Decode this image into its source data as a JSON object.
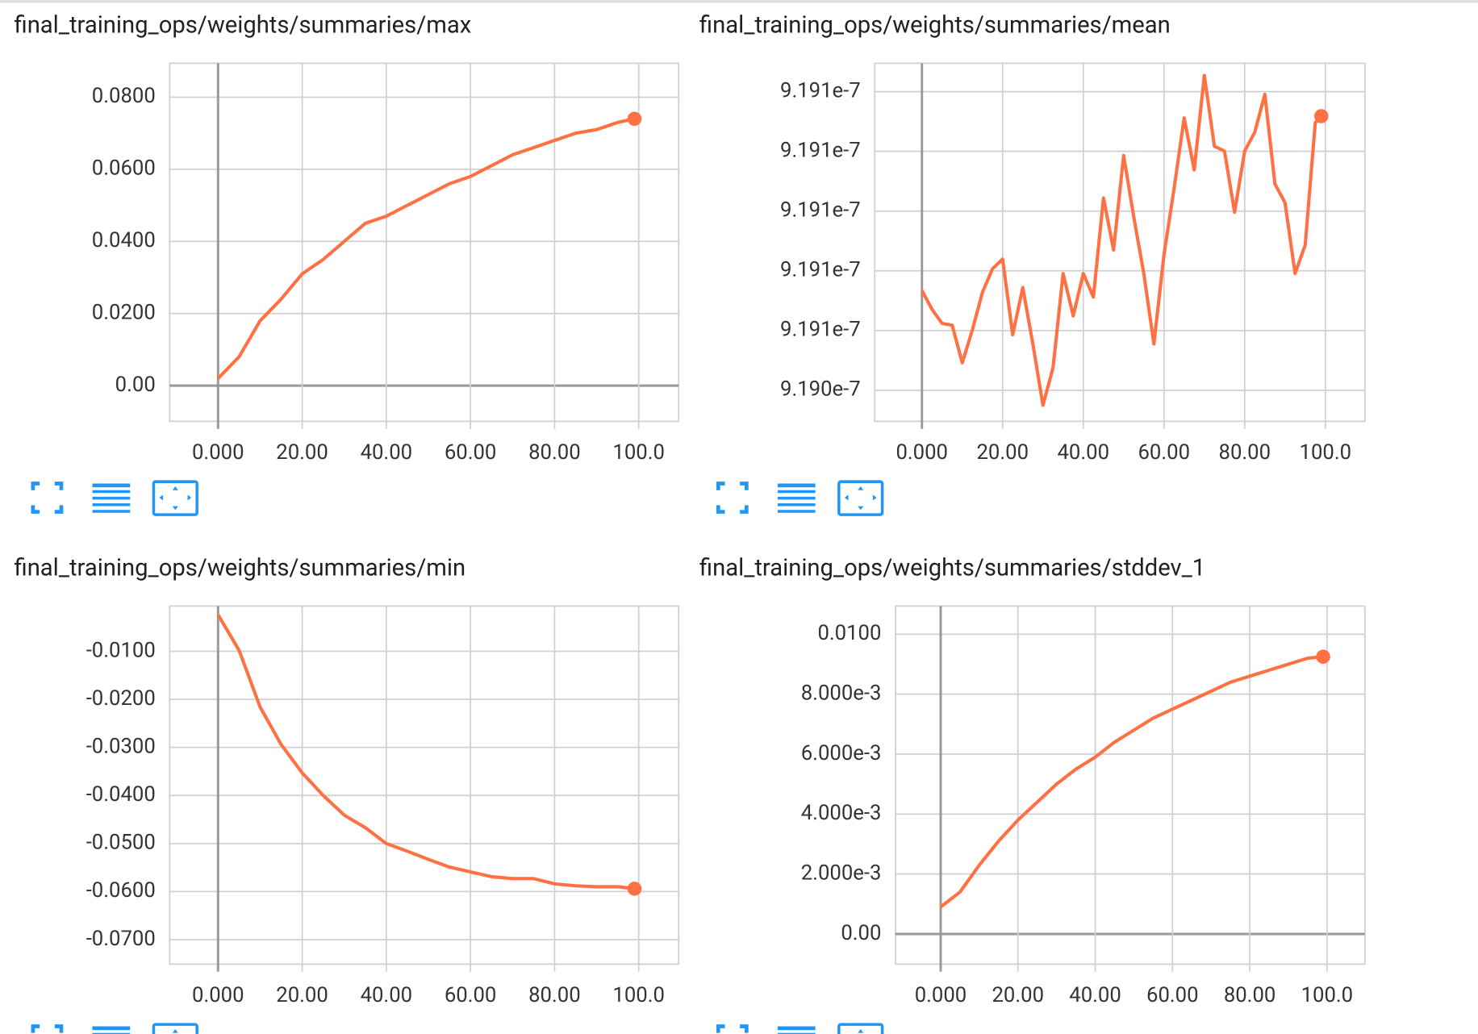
{
  "chart_data": [
    {
      "type": "line",
      "title": "final_training_ops/weights/summaries/max",
      "color": "#ff7043",
      "grid": true,
      "x": [
        0,
        5,
        10,
        15,
        20,
        25,
        30,
        35,
        40,
        45,
        50,
        55,
        60,
        65,
        70,
        75,
        80,
        85,
        90,
        95,
        99
      ],
      "values": [
        0.002,
        0.008,
        0.018,
        0.024,
        0.031,
        0.035,
        0.04,
        0.045,
        0.047,
        0.05,
        0.053,
        0.056,
        0.058,
        0.061,
        0.064,
        0.066,
        0.068,
        0.07,
        0.071,
        0.073,
        0.074
      ],
      "xlim": [
        -11.5,
        109.5
      ],
      "ylim": [
        -0.0099,
        0.0894
      ],
      "xticks": [
        {
          "value": 0,
          "label": "0.000"
        },
        {
          "value": 20,
          "label": "20.00"
        },
        {
          "value": 40,
          "label": "40.00"
        },
        {
          "value": 60,
          "label": "60.00"
        },
        {
          "value": 80,
          "label": "80.00"
        },
        {
          "value": 100,
          "label": "100.0"
        }
      ],
      "yticks": [
        {
          "value": 0,
          "label": "0.00"
        },
        {
          "value": 0.02,
          "label": "0.0200"
        },
        {
          "value": 0.04,
          "label": "0.0400"
        },
        {
          "value": 0.06,
          "label": "0.0600"
        },
        {
          "value": 0.08,
          "label": "0.0800"
        }
      ]
    },
    {
      "type": "line",
      "title": "final_training_ops/weights/summaries/mean",
      "color": "#ff7043",
      "grid": true,
      "x": [
        0,
        2.5,
        5,
        7.5,
        10,
        12.5,
        15,
        17.5,
        20,
        22.5,
        25,
        27.5,
        30,
        32.5,
        35,
        37.5,
        40,
        42.5,
        45,
        47.5,
        50,
        52.5,
        55,
        57.5,
        60,
        62.5,
        65,
        67.5,
        70,
        72.5,
        75,
        77.5,
        80,
        82.5,
        85,
        87.5,
        90,
        92.5,
        95,
        97.5,
        99
      ],
      "values": [
        9.190734e-07,
        9.190671e-07,
        9.190624e-07,
        9.190618e-07,
        9.190492e-07,
        9.190602e-07,
        9.190728e-07,
        9.190807e-07,
        9.190839e-07,
        9.190586e-07,
        9.190744e-07,
        9.190555e-07,
        9.19035e-07,
        9.190476e-07,
        9.190791e-07,
        9.190649e-07,
        9.190791e-07,
        9.190712e-07,
        9.191044e-07,
        9.19087e-07,
        9.191186e-07,
        9.190981e-07,
        9.190791e-07,
        9.190555e-07,
        9.190854e-07,
        9.191075e-07,
        9.191312e-07,
        9.191138e-07,
        9.191454e-07,
        9.191217e-07,
        9.191201e-07,
        9.190996e-07,
        9.191201e-07,
        9.191264e-07,
        9.191391e-07,
        9.191091e-07,
        9.191028e-07,
        9.190791e-07,
        9.190886e-07,
        9.191296e-07,
        9.191318e-07
      ],
      "xlim": [
        -11.7,
        109.8
      ],
      "ylim": [
        9.190296e-07,
        9.191495e-07
      ],
      "xticks": [
        {
          "value": 0,
          "label": "0.000"
        },
        {
          "value": 20,
          "label": "20.00"
        },
        {
          "value": 40,
          "label": "40.00"
        },
        {
          "value": 60,
          "label": "60.00"
        },
        {
          "value": 80,
          "label": "80.00"
        },
        {
          "value": 100,
          "label": "100.0"
        }
      ],
      "yticks": [
        {
          "value": 9.1904e-07,
          "label": "9.190e-7"
        },
        {
          "value": 9.1906e-07,
          "label": "9.191e-7"
        },
        {
          "value": 9.1908e-07,
          "label": "9.191e-7"
        },
        {
          "value": 9.191e-07,
          "label": "9.191e-7"
        },
        {
          "value": 9.1912e-07,
          "label": "9.191e-7"
        },
        {
          "value": 9.1914e-07,
          "label": "9.191e-7"
        }
      ]
    },
    {
      "type": "line",
      "title": "final_training_ops/weights/summaries/min",
      "color": "#ff7043",
      "grid": true,
      "x": [
        0,
        5,
        10,
        15,
        20,
        25,
        30,
        35,
        40,
        45,
        50,
        55,
        60,
        65,
        70,
        75,
        80,
        85,
        90,
        95,
        99
      ],
      "values": [
        -0.0024,
        -0.0098,
        -0.0216,
        -0.0294,
        -0.0353,
        -0.04,
        -0.0441,
        -0.0467,
        -0.05,
        -0.0516,
        -0.0533,
        -0.0549,
        -0.0559,
        -0.0569,
        -0.0573,
        -0.0573,
        -0.0584,
        -0.0588,
        -0.059,
        -0.059,
        -0.0594
      ],
      "xlim": [
        -11.5,
        109.5
      ],
      "ylim": [
        -0.0751,
        -0.00059
      ],
      "xticks": [
        {
          "value": 0,
          "label": "0.000"
        },
        {
          "value": 20,
          "label": "20.00"
        },
        {
          "value": 40,
          "label": "40.00"
        },
        {
          "value": 60,
          "label": "60.00"
        },
        {
          "value": 80,
          "label": "80.00"
        },
        {
          "value": 100,
          "label": "100.0"
        }
      ],
      "yticks": [
        {
          "value": -0.07,
          "label": "-0.0700"
        },
        {
          "value": -0.06,
          "label": "-0.0600"
        },
        {
          "value": -0.05,
          "label": "-0.0500"
        },
        {
          "value": -0.04,
          "label": "-0.0400"
        },
        {
          "value": -0.03,
          "label": "-0.0300"
        },
        {
          "value": -0.02,
          "label": "-0.0200"
        },
        {
          "value": -0.01,
          "label": "-0.0100"
        }
      ]
    },
    {
      "type": "line",
      "title": "final_training_ops/weights/summaries/stddev_1",
      "color": "#ff7043",
      "grid": true,
      "x": [
        0,
        5,
        10,
        15,
        20,
        25,
        30,
        35,
        40,
        45,
        50,
        55,
        60,
        65,
        70,
        75,
        80,
        85,
        90,
        95,
        99
      ],
      "values": [
        0.0009,
        0.0014,
        0.0023,
        0.0031,
        0.0038,
        0.0044,
        0.005,
        0.0055,
        0.0059,
        0.0064,
        0.0068,
        0.0072,
        0.0075,
        0.0078,
        0.0081,
        0.0084,
        0.0086,
        0.0088,
        0.009,
        0.0092,
        0.00925
      ],
      "xlim": [
        -11.7,
        109.8
      ],
      "ylim": [
        -0.001006,
        0.01094
      ],
      "xticks": [
        {
          "value": 0,
          "label": "0.000"
        },
        {
          "value": 20,
          "label": "20.00"
        },
        {
          "value": 40,
          "label": "40.00"
        },
        {
          "value": 60,
          "label": "60.00"
        },
        {
          "value": 80,
          "label": "80.00"
        },
        {
          "value": 100,
          "label": "100.0"
        }
      ],
      "yticks": [
        {
          "value": 0,
          "label": "0.00"
        },
        {
          "value": 0.002,
          "label": "2.000e-3"
        },
        {
          "value": 0.004,
          "label": "4.000e-3"
        },
        {
          "value": 0.006,
          "label": "6.000e-3"
        },
        {
          "value": 0.008,
          "label": "8.000e-3"
        },
        {
          "value": 0.01,
          "label": "0.0100"
        }
      ]
    }
  ]
}
